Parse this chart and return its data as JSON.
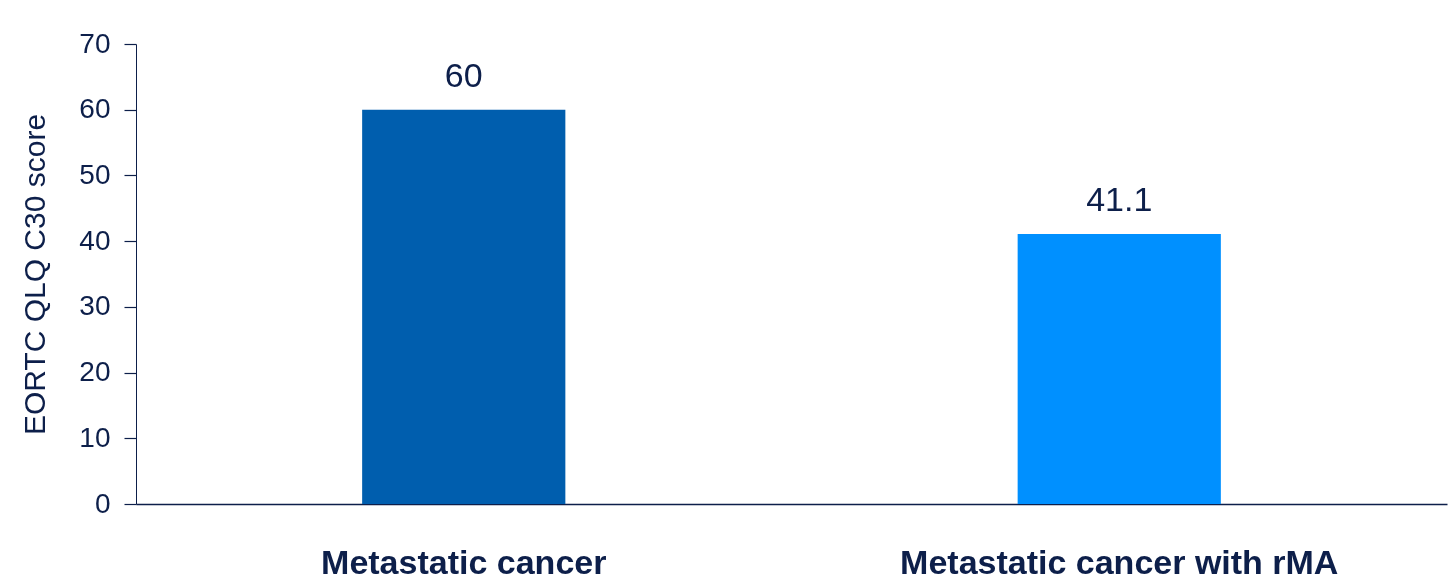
{
  "chart_data": {
    "type": "bar",
    "ylabel": "EORTC QLQ C30 score",
    "categories": [
      "Metastatic cancer",
      "Metastatic cancer with rMA"
    ],
    "values": [
      60,
      41.1
    ],
    "colors": [
      "#005eae",
      "#0090ff"
    ],
    "ylim": [
      0,
      70
    ],
    "yticks": [
      0,
      10,
      20,
      30,
      40,
      50,
      60,
      70
    ],
    "data_labels": true,
    "grid": false
  }
}
